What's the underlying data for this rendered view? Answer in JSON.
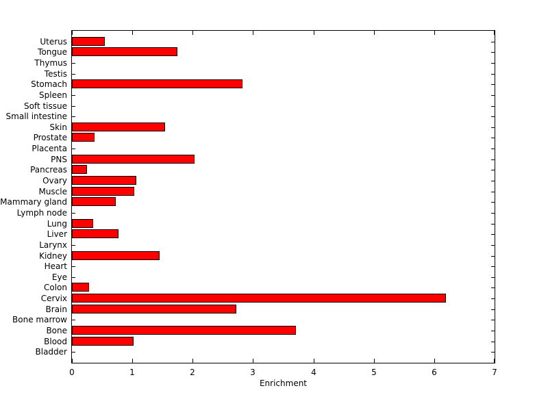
{
  "chart_data": {
    "type": "bar",
    "orientation": "horizontal",
    "title": "",
    "xlabel": "Enrichment",
    "ylabel": "",
    "xlim": [
      0,
      7
    ],
    "x_ticks": [
      0,
      1,
      2,
      3,
      4,
      5,
      6,
      7
    ],
    "grid": false,
    "legend": null,
    "bar_color": "#FF0000",
    "bar_edge_color": "#000000",
    "axis_color": "#000000",
    "background_color": "#FFFFFF",
    "categories_top_to_bottom": [
      "Uterus",
      "Tongue",
      "Thymus",
      "Testis",
      "Stomach",
      "Spleen",
      "Soft tissue",
      "Small intestine",
      "Skin",
      "Prostate",
      "Placenta",
      "PNS",
      "Pancreas",
      "Ovary",
      "Muscle",
      "Mammary gland",
      "Lymph node",
      "Lung",
      "Liver",
      "Larynx",
      "Kidney",
      "Heart",
      "Eye",
      "Colon",
      "Cervix",
      "Brain",
      "Bone marrow",
      "Bone",
      "Blood",
      "Bladder"
    ],
    "values": [
      0.55,
      1.75,
      0,
      0,
      2.82,
      0,
      0,
      0,
      1.54,
      0.38,
      0,
      2.03,
      0.25,
      1.07,
      1.03,
      0.73,
      0,
      0.35,
      0.77,
      0,
      1.45,
      0,
      0,
      0.28,
      6.19,
      2.72,
      0,
      3.71,
      1.02,
      0
    ]
  }
}
